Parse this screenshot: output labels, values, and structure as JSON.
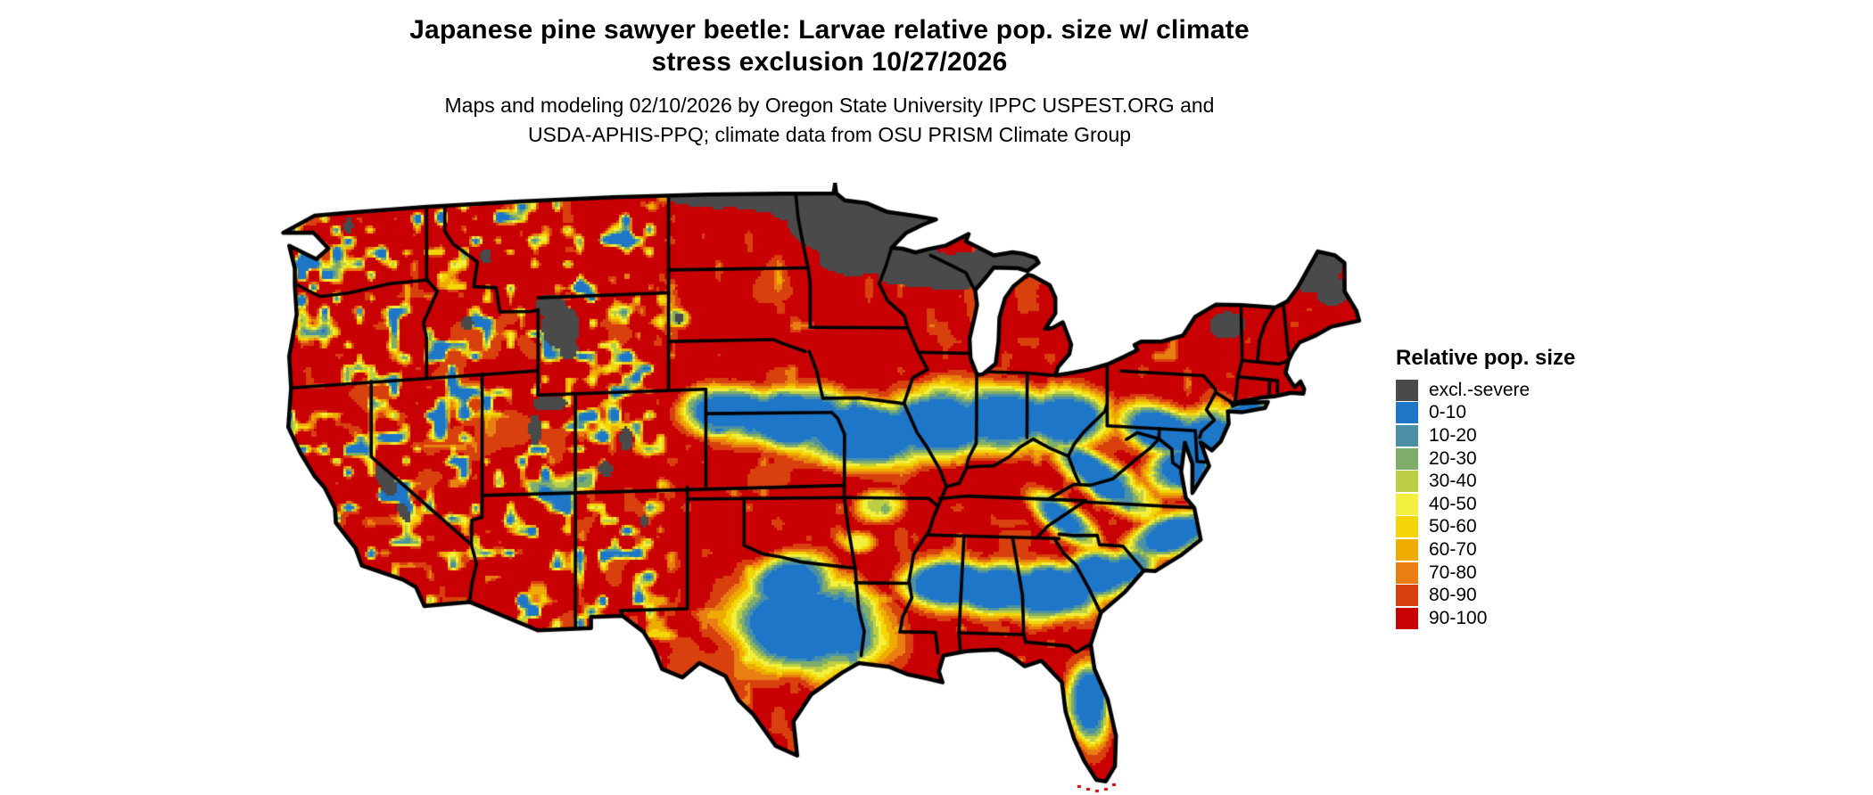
{
  "header": {
    "title": "Japanese pine sawyer beetle: Larvae relative pop. size w/ climate\nstress exclusion 10/27/2026",
    "subtitle": "Maps and modeling 02/10/2026 by Oregon State University IPPC USPEST.ORG and\nUSDA-APHIS-PPQ; climate data from OSU PRISM Climate Group"
  },
  "legend": {
    "title": "Relative pop. size",
    "items": [
      {
        "label": "excl.-severe",
        "color": "#4a4a4a"
      },
      {
        "label": "0-10",
        "color": "#1d76c8"
      },
      {
        "label": "10-20",
        "color": "#4b90a4"
      },
      {
        "label": "20-30",
        "color": "#7ead6a"
      },
      {
        "label": "30-40",
        "color": "#bccf44"
      },
      {
        "label": "40-50",
        "color": "#f3ef3d"
      },
      {
        "label": "50-60",
        "color": "#f3d508"
      },
      {
        "label": "60-70",
        "color": "#efac00"
      },
      {
        "label": "70-80",
        "color": "#e97e12"
      },
      {
        "label": "80-90",
        "color": "#d8400e"
      },
      {
        "label": "90-100",
        "color": "#c80003"
      }
    ]
  },
  "map": {
    "outline_color": "#000000",
    "background": "#ffffff"
  }
}
